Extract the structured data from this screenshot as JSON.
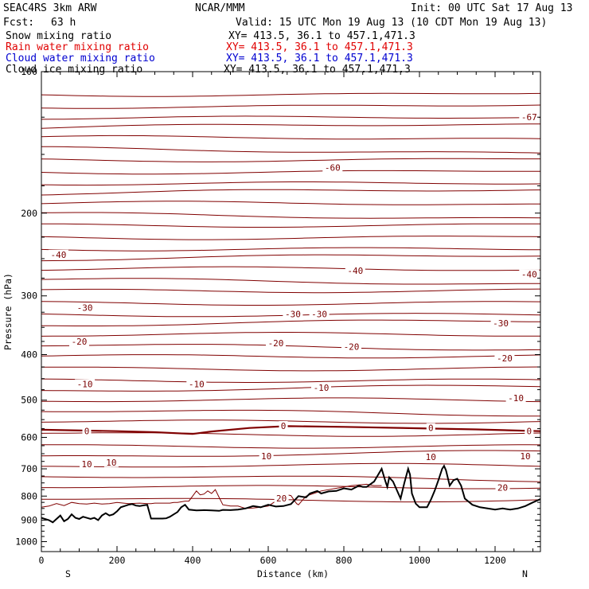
{
  "header": {
    "model": "SEAC4RS  3km ARW",
    "institution": "NCAR/MMM",
    "init": "Init: 00 UTC Sat 17 Aug 13",
    "fcst_label": "Fcst:",
    "fcst_value": "63 h",
    "valid": "Valid: 15 UTC Mon 19 Aug 13 (10 CDT Mon 19 Aug 13)"
  },
  "fields": [
    {
      "name": "Snow mixing ratio",
      "xy": "XY= 413.5, 36.1 to 457.1,471.3",
      "color": "#000000"
    },
    {
      "name": "Rain water mixing ratio",
      "xy": "XY= 413.5, 36.1 to 457.1,471.3",
      "color": "#e00000"
    },
    {
      "name": "Cloud water mixing ratio",
      "xy": "XY= 413.5, 36.1 to 457.1,471.3",
      "color": "#0000d0"
    },
    {
      "name": "Cloud ice mixing ratio",
      "xy": "XY= 413.5, 36.1 to 457.1,471.3",
      "color": "#000000"
    }
  ],
  "colors": {
    "contour": "#800000",
    "terrain": "#000000",
    "rain": "#e00000",
    "cloud": "#0000d0"
  },
  "chart_data": {
    "type": "line",
    "title": "",
    "xlabel": "Distance (km)",
    "ylabel": "Pressure (hPa)",
    "xlim": [
      0,
      1320
    ],
    "ylim": [
      1050,
      100
    ],
    "y_scale": "log",
    "xticks": [
      "0",
      "200",
      "400",
      "600",
      "800",
      "1000",
      "1200"
    ],
    "yticks": [
      "100",
      "200",
      "300",
      "400",
      "500",
      "600",
      "700",
      "800",
      "900",
      "1000"
    ],
    "end_labels": {
      "left": "S",
      "right": "N"
    },
    "isotherm_labels": [
      {
        "text": "-67",
        "x": 1290,
        "p": 125
      },
      {
        "text": "-60",
        "x": 770,
        "p": 160
      },
      {
        "text": "-40",
        "x": 45,
        "p": 245
      },
      {
        "text": "-40",
        "x": 830,
        "p": 265
      },
      {
        "text": "-40",
        "x": 1290,
        "p": 270
      },
      {
        "text": "-30",
        "x": 115,
        "p": 318
      },
      {
        "text": "-30",
        "x": 665,
        "p": 328
      },
      {
        "text": "-30",
        "x": 735,
        "p": 328
      },
      {
        "text": "-30",
        "x": 1215,
        "p": 343
      },
      {
        "text": "-20",
        "x": 100,
        "p": 375
      },
      {
        "text": "-20",
        "x": 620,
        "p": 378
      },
      {
        "text": "-20",
        "x": 820,
        "p": 385
      },
      {
        "text": "-20",
        "x": 1225,
        "p": 407
      },
      {
        "text": "-10",
        "x": 115,
        "p": 462
      },
      {
        "text": "-10",
        "x": 410,
        "p": 462
      },
      {
        "text": "-10",
        "x": 740,
        "p": 470
      },
      {
        "text": "-10",
        "x": 1255,
        "p": 495
      },
      {
        "text": "0",
        "x": 120,
        "p": 582
      },
      {
        "text": "0",
        "x": 640,
        "p": 567
      },
      {
        "text": "0",
        "x": 1030,
        "p": 573
      },
      {
        "text": "0",
        "x": 1290,
        "p": 582
      },
      {
        "text": "10",
        "x": 120,
        "p": 684
      },
      {
        "text": "10",
        "x": 185,
        "p": 678
      },
      {
        "text": "10",
        "x": 595,
        "p": 658
      },
      {
        "text": "10",
        "x": 1030,
        "p": 660
      },
      {
        "text": "10",
        "x": 1280,
        "p": 658
      },
      {
        "text": "20",
        "x": 635,
        "p": 808
      },
      {
        "text": "20",
        "x": 1220,
        "p": 767
      }
    ],
    "freezing_level": {
      "x": [
        0,
        200,
        300,
        400,
        450,
        550,
        650,
        800,
        1000,
        1150,
        1320
      ],
      "p": [
        578,
        582,
        585,
        590,
        583,
        573,
        568,
        570,
        574,
        577,
        582
      ]
    },
    "terrain": {
      "x": [
        0,
        20,
        30,
        40,
        50,
        60,
        70,
        80,
        90,
        100,
        110,
        120,
        130,
        140,
        150,
        160,
        170,
        180,
        190,
        200,
        210,
        230,
        240,
        250,
        260,
        270,
        280,
        290,
        300,
        310,
        320,
        330,
        340,
        350,
        360,
        370,
        380,
        390,
        410,
        430,
        450,
        470,
        480,
        500,
        520,
        540,
        560,
        580,
        600,
        620,
        640,
        660,
        680,
        700,
        710,
        730,
        740,
        760,
        780,
        800,
        820,
        840,
        850,
        860,
        880,
        900,
        910,
        915,
        920,
        930,
        950,
        960,
        970,
        975,
        980,
        990,
        1000,
        1020,
        1030,
        1040,
        1050,
        1060,
        1065,
        1070,
        1080,
        1090,
        1100,
        1110,
        1120,
        1140,
        1160,
        1180,
        1200,
        1220,
        1240,
        1260,
        1280,
        1300,
        1320
      ],
      "p": [
        890,
        900,
        910,
        895,
        880,
        905,
        895,
        875,
        890,
        895,
        885,
        890,
        895,
        890,
        900,
        880,
        870,
        880,
        875,
        862,
        845,
        835,
        832,
        838,
        840,
        837,
        835,
        893,
        893,
        893,
        893,
        892,
        885,
        875,
        865,
        845,
        835,
        855,
        858,
        857,
        858,
        860,
        856,
        857,
        855,
        850,
        840,
        845,
        835,
        842,
        840,
        832,
        800,
        805,
        790,
        780,
        790,
        782,
        780,
        770,
        775,
        760,
        765,
        765,
        745,
        700,
        745,
        765,
        730,
        745,
        810,
        750,
        700,
        720,
        790,
        830,
        845,
        845,
        815,
        780,
        740,
        700,
        690,
        705,
        760,
        740,
        735,
        760,
        810,
        835,
        845,
        850,
        855,
        850,
        855,
        850,
        840,
        825,
        812
      ]
    },
    "rain_top": {
      "x": [
        0,
        20,
        40,
        60,
        80,
        100,
        120,
        140,
        160,
        180,
        200,
        230,
        260,
        280,
        290,
        300,
        340,
        350,
        360,
        380,
        390,
        400,
        410,
        420,
        430,
        440,
        450,
        460,
        470,
        480,
        500,
        520,
        540,
        560,
        580,
        600,
        620,
        625,
        630,
        650,
        660,
        675,
        680,
        700,
        740,
        780,
        820,
        860,
        880,
        900
      ],
      "p": [
        845,
        840,
        830,
        838,
        825,
        830,
        832,
        828,
        832,
        830,
        825,
        830,
        828,
        830,
        830,
        828,
        828,
        825,
        825,
        820,
        820,
        800,
        780,
        795,
        792,
        780,
        790,
        775,
        805,
        835,
        840,
        840,
        850,
        848,
        845,
        840,
        820,
        805,
        800,
        795,
        798,
        830,
        835,
        800,
        780,
        770,
        760,
        755,
        760,
        760
      ]
    }
  }
}
